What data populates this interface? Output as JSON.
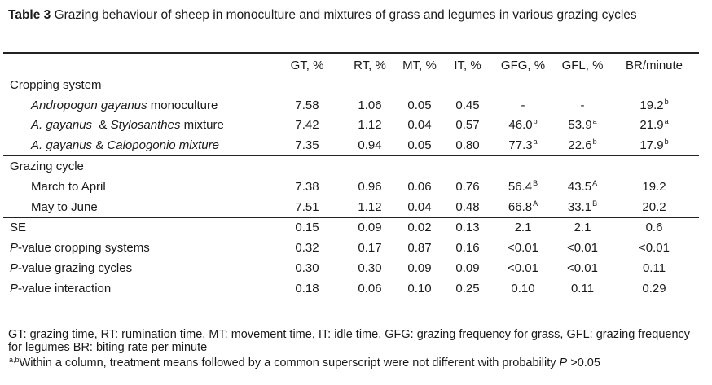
{
  "caption": {
    "label": "Table 3",
    "text": "Grazing behaviour of sheep in monoculture and mixtures of grass and legumes in various grazing cycles"
  },
  "columns": [
    "GT, %",
    "RT, %",
    "MT, %",
    "IT, %",
    "GFG, %",
    "GFL, %",
    "BR/minute"
  ],
  "sections": {
    "cropping": {
      "title": "Cropping system",
      "rows": [
        {
          "label_italic": "Andropogon gayanus",
          "label_rest": " monoculture",
          "values": [
            "7.58",
            "1.06",
            "0.05",
            "0.45",
            "-",
            "-",
            "19.2"
          ],
          "sups": [
            "",
            "",
            "",
            "",
            "",
            "",
            "b"
          ]
        },
        {
          "label_italic": "A. gayanus",
          "label_mid": "  & ",
          "label_italic2": "Stylosanthes",
          "label_rest": " mixture",
          "values": [
            "7.42",
            "1.12",
            "0.04",
            "0.57",
            "46.0",
            "53.9",
            "21.9"
          ],
          "sups": [
            "",
            "",
            "",
            "",
            "b",
            "a",
            "a"
          ]
        },
        {
          "label_italic": "A. gayanus",
          "label_mid": " & ",
          "label_italic2": "Calopogonio mixture",
          "label_rest": "",
          "values": [
            "7.35",
            "0.94",
            "0.05",
            "0.80",
            "77.3",
            "22.6",
            "17.9"
          ],
          "sups": [
            "",
            "",
            "",
            "",
            "a",
            "b",
            "b"
          ]
        }
      ]
    },
    "grazing": {
      "title": "Grazing cycle",
      "rows": [
        {
          "label": "March to April",
          "values": [
            "7.38",
            "0.96",
            "0.06",
            "0.76",
            "56.4",
            "43.5",
            "19.2"
          ],
          "sups": [
            "",
            "",
            "",
            "",
            "B",
            "A",
            ""
          ]
        },
        {
          "label": "May to June",
          "values": [
            "7.51",
            "1.12",
            "0.04",
            "0.48",
            "66.8",
            "33.1",
            "20.2"
          ],
          "sups": [
            "",
            "",
            "",
            "",
            "A",
            "B",
            ""
          ]
        }
      ]
    },
    "stats": [
      {
        "label_italic": "",
        "label": "SE",
        "values": [
          "0.15",
          "0.09",
          "0.02",
          "0.13",
          "2.1",
          "2.1",
          "0.6"
        ]
      },
      {
        "label_italic": "P",
        "label": "-value  cropping systems",
        "values": [
          "0.32",
          "0.17",
          "0.87",
          "0.16",
          "<0.01",
          "<0.01",
          "<0.01"
        ]
      },
      {
        "label_italic": "P",
        "label": "-value grazing cycles",
        "values": [
          "0.30",
          "0.30",
          "0.09",
          "0.09",
          "<0.01",
          "<0.01",
          "0.11"
        ]
      },
      {
        "label_italic": "P",
        "label": "-value interaction",
        "values": [
          "0.18",
          "0.06",
          "0.10",
          "0.25",
          "0.10",
          "0.11",
          "0.29"
        ]
      }
    ]
  },
  "footnotes": {
    "abbrev": "GT: grazing time, RT: rumination time, MT: movement time, IT: idle time, GFG: grazing frequency for grass, GFL: grazing frequency for legumes BR: biting rate per minute",
    "sup_mark": "a,b",
    "sig_text": "Within a column, treatment means followed by a common superscript were not different with probability ",
    "sig_p": "P",
    "sig_end": " >0.05"
  }
}
